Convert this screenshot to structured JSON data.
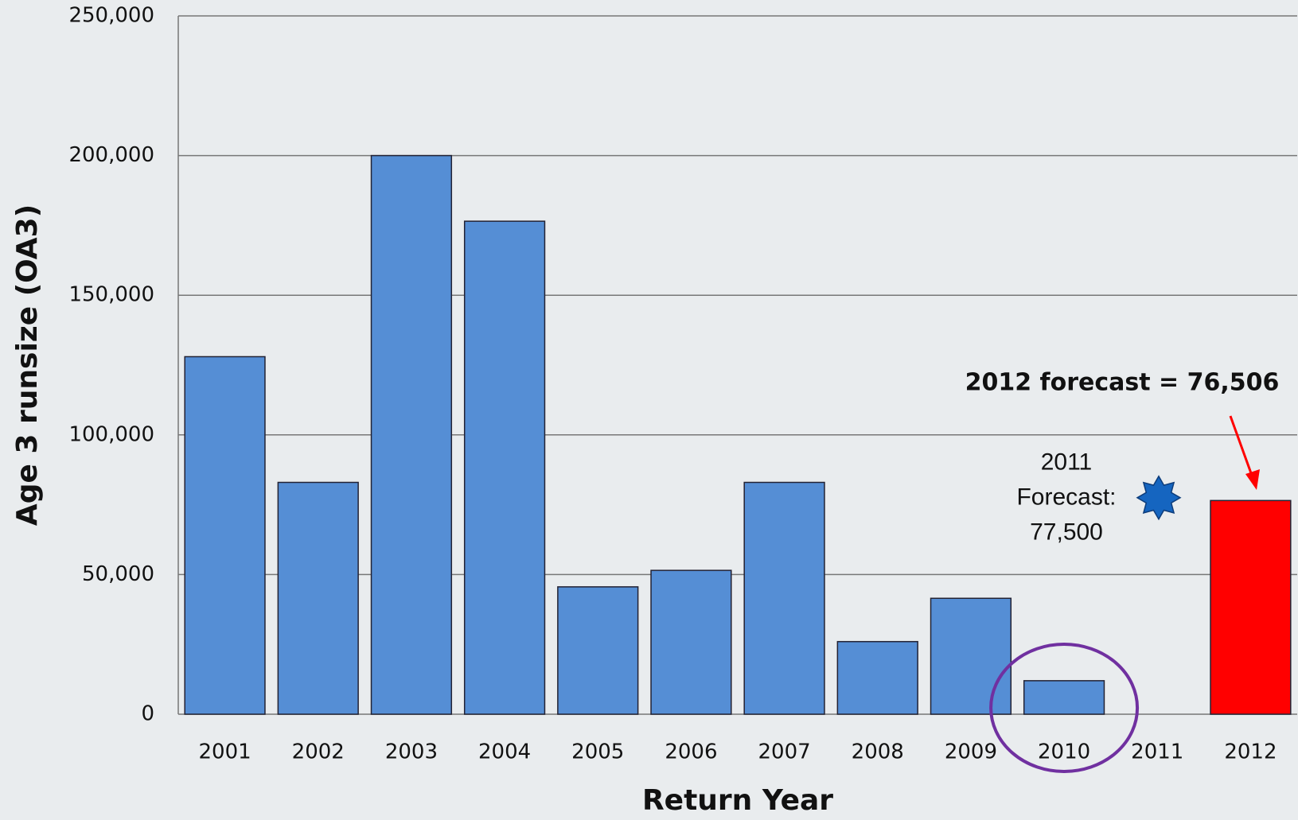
{
  "chart_data": {
    "type": "bar",
    "x_label": "Return Year",
    "y_label": "Age 3 runsize (OA3)",
    "categories": [
      "2001",
      "2002",
      "2003",
      "2004",
      "2005",
      "2006",
      "2007",
      "2008",
      "2009",
      "2010",
      "2011",
      "2012"
    ],
    "values": [
      128000,
      83000,
      200000,
      176500,
      45600,
      51500,
      83000,
      26000,
      41500,
      12000,
      null,
      76506
    ],
    "colors": [
      "#558ed5",
      "#558ed5",
      "#558ed5",
      "#558ed5",
      "#558ed5",
      "#558ed5",
      "#558ed5",
      "#558ed5",
      "#558ed5",
      "#558ed5",
      "#558ed5",
      "#ff0000"
    ],
    "ylim": [
      0,
      250000
    ],
    "yticks": [
      0,
      {
        "value": 50000,
        "label": "50,000"
      },
      {
        "value": 100000,
        "label": "100,000"
      },
      {
        "value": 150000,
        "label": "150,000"
      },
      {
        "value": 200000,
        "label": "200,000"
      },
      {
        "value": 250000,
        "label": "250,000"
      }
    ],
    "grid": true,
    "forecast_2012_annotation": "2012 forecast = 76,506",
    "forecast_2011": {
      "value": 77500,
      "color": "#1565c0",
      "label_lines": [
        "2011",
        "Forecast:",
        "77,500"
      ]
    },
    "highlight_category": "2010"
  }
}
